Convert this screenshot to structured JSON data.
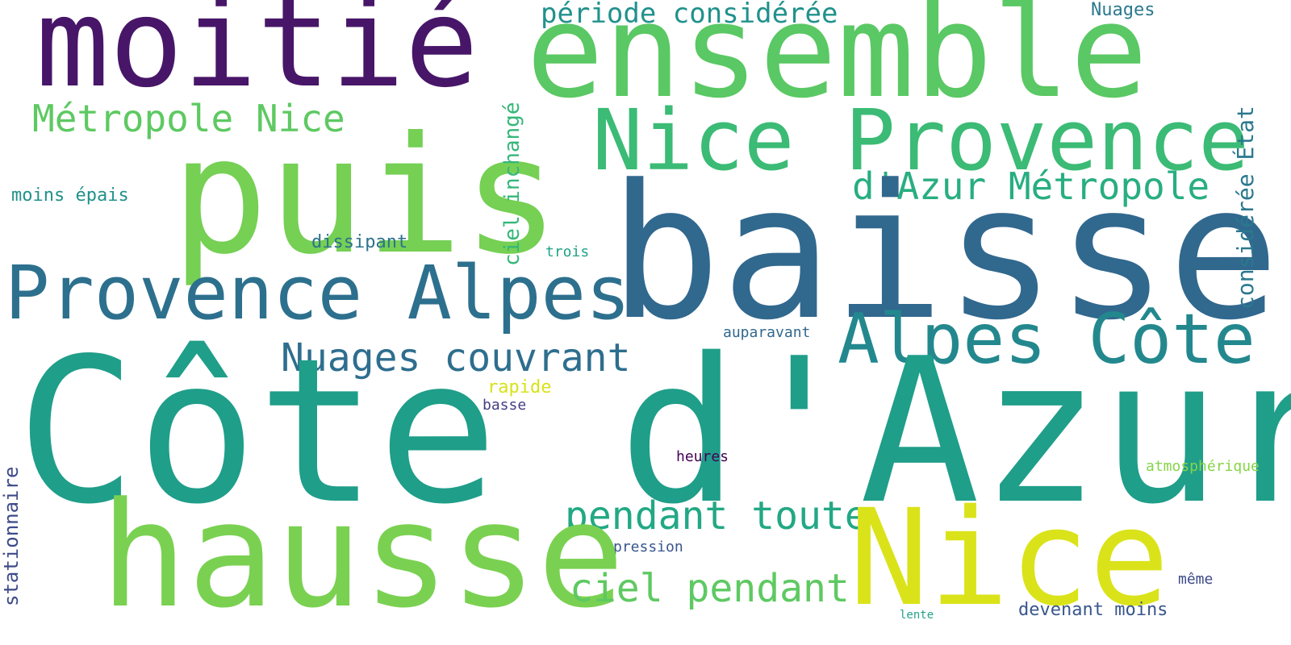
{
  "words": [
    {
      "text": "moitié",
      "color": "#481668"
    },
    {
      "text": "ensemble",
      "color": "#5ac864"
    },
    {
      "text": "période considérée",
      "color": "#21918c"
    },
    {
      "text": "Nuages",
      "color": "#2a788e"
    },
    {
      "text": "Métropole Nice",
      "color": "#5ec962"
    },
    {
      "text": "Nice Provence",
      "color": "#3bbb75"
    },
    {
      "text": "puis",
      "color": "#75d054"
    },
    {
      "text": "d'Azur Métropole",
      "color": "#28ae80"
    },
    {
      "text": "moins épais",
      "color": "#21918c"
    },
    {
      "text": "dissipant",
      "color": "#2c728e"
    },
    {
      "text": "baisse",
      "color": "#31688e"
    },
    {
      "text": "trois",
      "color": "#20a386"
    },
    {
      "text": "Provence Alpes",
      "color": "#2d708e"
    },
    {
      "text": "Alpes Côte",
      "color": "#23888e"
    },
    {
      "text": "auparavant",
      "color": "#31688e"
    },
    {
      "text": "Nuages couvrant",
      "color": "#2e6e8e"
    },
    {
      "text": "rapide",
      "color": "#d8e219"
    },
    {
      "text": "basse",
      "color": "#433e85"
    },
    {
      "text": "Côte d'Azur",
      "color": "#1f9e89"
    },
    {
      "text": "heures",
      "color": "#440154"
    },
    {
      "text": "atmosphérique",
      "color": "#86d549"
    },
    {
      "text": "pendant toute",
      "color": "#22a884"
    },
    {
      "text": "Nice",
      "color": "#dae319"
    },
    {
      "text": "pression",
      "color": "#39568c"
    },
    {
      "text": "hausse",
      "color": "#7ad151"
    },
    {
      "text": "ciel pendant",
      "color": "#5ec962"
    },
    {
      "text": "même",
      "color": "#3e4a89"
    },
    {
      "text": "devenant moins",
      "color": "#39568c"
    },
    {
      "text": "lente",
      "color": "#20a386"
    },
    {
      "text": "ciel inchangé",
      "color": "#35b779"
    },
    {
      "text": "considérée État",
      "color": "#2a788e"
    },
    {
      "text": "stationnaire",
      "color": "#3e4a89"
    }
  ]
}
